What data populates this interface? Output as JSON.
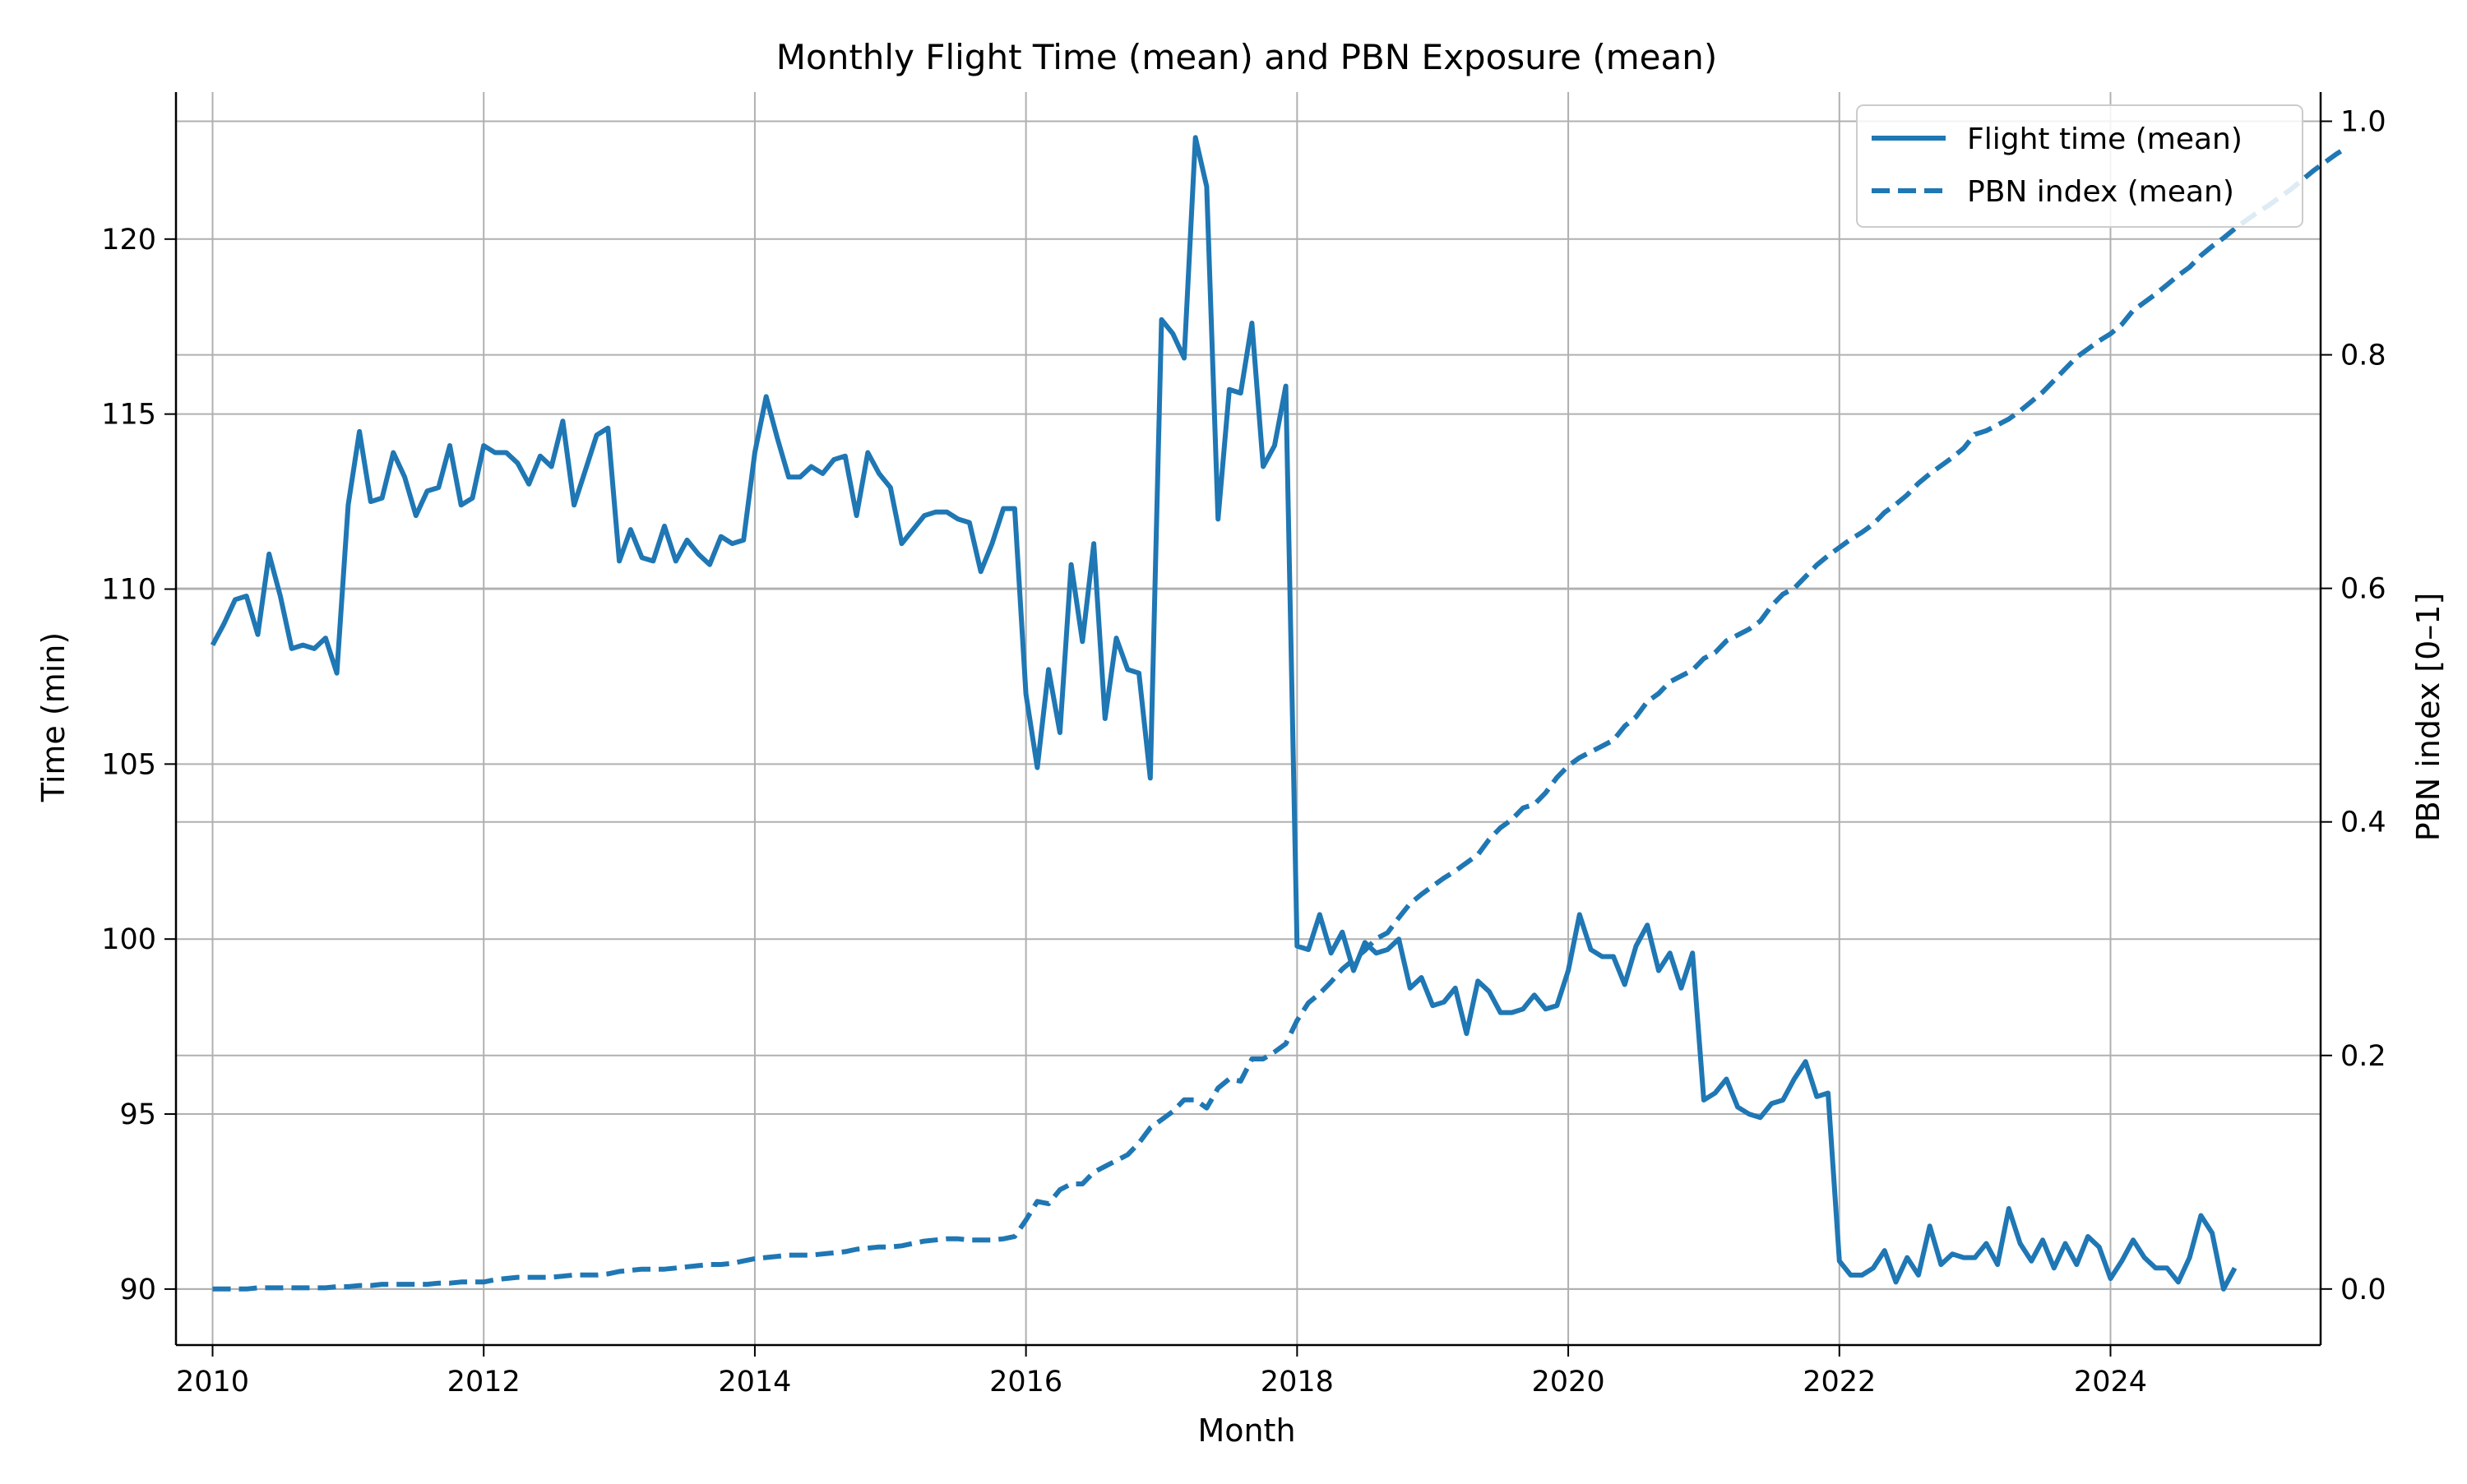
{
  "chart_data": {
    "type": "line",
    "title": "Monthly Flight Time (mean) and PBN Exposure (mean)",
    "xlabel": "Month",
    "ylabel": "Time (min)",
    "ylabel_right": "PBN index [0–1]",
    "x_ticks": [
      "2010",
      "2012",
      "2014",
      "2016",
      "2018",
      "2020",
      "2022",
      "2024"
    ],
    "xlim": [
      2009.73,
      2025.55
    ],
    "ylim": [
      88.4,
      124.2
    ],
    "y_ticks": [
      "90",
      "95",
      "100",
      "105",
      "110",
      "115",
      "120"
    ],
    "ylim_right": [
      -0.048,
      1.025
    ],
    "y_ticks_right": [
      "0.0",
      "0.2",
      "0.4",
      "0.6",
      "0.8",
      "1.0"
    ],
    "grid": true,
    "legend_position": "top-right",
    "colors": {
      "series": "#1f77b4",
      "grid": "#b0b0b0",
      "axis": "#000000"
    },
    "series": [
      {
        "name": "Flight time (mean)",
        "axis": "left",
        "style": "solid",
        "x_start": "2010-01",
        "x_step": "month",
        "values": [
          108.4,
          109.0,
          109.7,
          109.8,
          108.7,
          111.0,
          109.8,
          108.3,
          108.4,
          108.3,
          108.6,
          107.6,
          112.4,
          114.5,
          112.5,
          112.6,
          113.9,
          113.2,
          112.1,
          112.8,
          112.9,
          114.1,
          112.4,
          112.6,
          114.1,
          113.9,
          113.9,
          113.6,
          113.0,
          113.8,
          113.5,
          114.8,
          112.4,
          113.4,
          114.4,
          114.6,
          110.8,
          111.7,
          110.9,
          110.8,
          111.8,
          110.8,
          111.4,
          111.0,
          110.7,
          111.5,
          111.3,
          111.4,
          113.9,
          115.5,
          114.3,
          113.2,
          113.2,
          113.5,
          113.3,
          113.7,
          113.8,
          112.1,
          113.9,
          113.3,
          112.9,
          111.3,
          111.7,
          112.1,
          112.2,
          112.2,
          112.0,
          111.9,
          110.5,
          111.3,
          112.3,
          112.3,
          107.0,
          104.9,
          107.7,
          105.9,
          110.7,
          108.5,
          111.3,
          106.3,
          108.6,
          107.7,
          107.6,
          104.6,
          117.7,
          117.3,
          116.6,
          122.9,
          121.5,
          112.0,
          115.7,
          115.6,
          117.6,
          113.5,
          114.1,
          115.8,
          99.8,
          99.7,
          100.7,
          99.6,
          100.2,
          99.1,
          99.9,
          99.6,
          99.7,
          100.0,
          98.6,
          98.9,
          98.1,
          98.2,
          98.6,
          97.3,
          98.8,
          98.5,
          97.9,
          97.9,
          98.0,
          98.4,
          98.0,
          98.1,
          99.1,
          100.7,
          99.7,
          99.5,
          99.5,
          98.7,
          99.8,
          100.4,
          99.1,
          99.6,
          98.6,
          99.6,
          95.4,
          95.6,
          96.0,
          95.2,
          95.0,
          94.9,
          95.3,
          95.4,
          96.0,
          96.5,
          95.5,
          95.6,
          90.8,
          90.4,
          90.4,
          90.6,
          91.1,
          90.2,
          90.9,
          90.4,
          91.8,
          90.7,
          91.0,
          90.9,
          90.9,
          91.3,
          90.7,
          92.3,
          91.3,
          90.8,
          91.4,
          90.6,
          91.3,
          90.7,
          91.5,
          91.2,
          90.3,
          90.8,
          91.4,
          90.9,
          90.6,
          90.6,
          90.2,
          90.9,
          92.1,
          91.6,
          90.0,
          90.6
        ]
      },
      {
        "name": "PBN index (mean)",
        "axis": "right",
        "style": "dashed",
        "x_start": "2010-01",
        "x_step": "month",
        "values": [
          0.0,
          0.0,
          0.0,
          0.0,
          0.001,
          0.001,
          0.001,
          0.001,
          0.001,
          0.001,
          0.001,
          0.002,
          0.002,
          0.003,
          0.003,
          0.004,
          0.004,
          0.004,
          0.004,
          0.004,
          0.005,
          0.005,
          0.006,
          0.006,
          0.006,
          0.008,
          0.009,
          0.01,
          0.01,
          0.01,
          0.01,
          0.011,
          0.012,
          0.012,
          0.012,
          0.013,
          0.015,
          0.016,
          0.017,
          0.017,
          0.017,
          0.018,
          0.019,
          0.02,
          0.021,
          0.021,
          0.022,
          0.024,
          0.026,
          0.027,
          0.028,
          0.029,
          0.029,
          0.029,
          0.03,
          0.031,
          0.032,
          0.034,
          0.035,
          0.036,
          0.036,
          0.037,
          0.039,
          0.041,
          0.042,
          0.043,
          0.043,
          0.042,
          0.042,
          0.042,
          0.043,
          0.045,
          0.059,
          0.075,
          0.073,
          0.085,
          0.09,
          0.09,
          0.1,
          0.105,
          0.11,
          0.115,
          0.125,
          0.138,
          0.145,
          0.152,
          0.162,
          0.162,
          0.155,
          0.172,
          0.18,
          0.178,
          0.197,
          0.197,
          0.203,
          0.21,
          0.23,
          0.245,
          0.253,
          0.263,
          0.274,
          0.282,
          0.29,
          0.3,
          0.305,
          0.318,
          0.33,
          0.338,
          0.345,
          0.352,
          0.358,
          0.365,
          0.372,
          0.385,
          0.395,
          0.402,
          0.412,
          0.415,
          0.425,
          0.438,
          0.448,
          0.455,
          0.46,
          0.465,
          0.47,
          0.482,
          0.49,
          0.503,
          0.51,
          0.52,
          0.525,
          0.53,
          0.54,
          0.545,
          0.555,
          0.56,
          0.565,
          0.572,
          0.585,
          0.595,
          0.6,
          0.61,
          0.62,
          0.628,
          0.635,
          0.642,
          0.648,
          0.655,
          0.665,
          0.672,
          0.68,
          0.69,
          0.698,
          0.705,
          0.712,
          0.72,
          0.732,
          0.735,
          0.74,
          0.745,
          0.752,
          0.76,
          0.768,
          0.778,
          0.788,
          0.798,
          0.805,
          0.812,
          0.818,
          0.826,
          0.838,
          0.845,
          0.852,
          0.86,
          0.868,
          0.875,
          0.885,
          0.893,
          0.9,
          0.908,
          0.915,
          0.922,
          0.928,
          0.935,
          0.942,
          0.95,
          0.958,
          0.965,
          0.972,
          0.978
        ]
      }
    ]
  }
}
